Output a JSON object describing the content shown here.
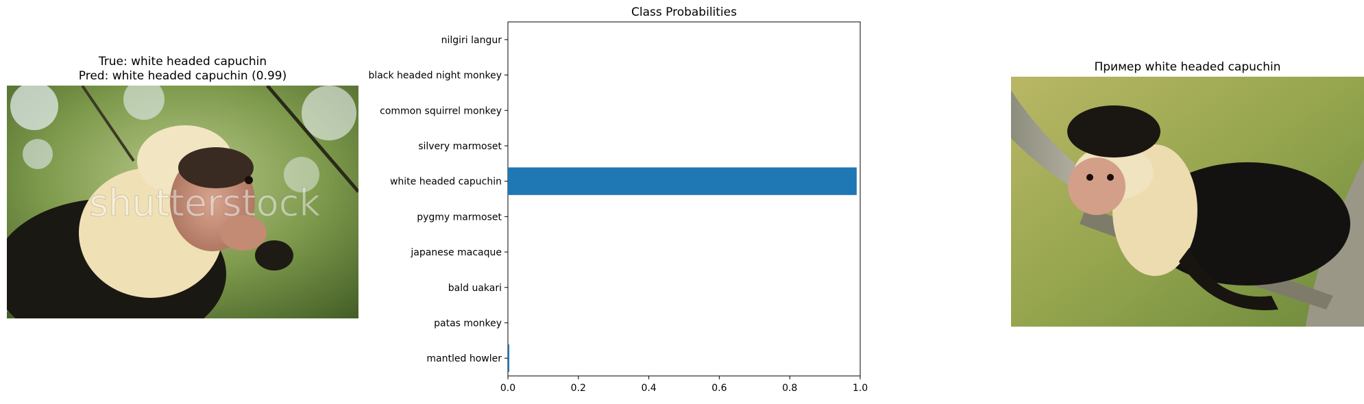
{
  "left_panel": {
    "title_true": "True: white headed capuchin",
    "title_pred": "Pred: white headed capuchin (0.99)",
    "watermark": "shutterstock"
  },
  "right_panel": {
    "title": "Пример white headed capuchin"
  },
  "chart_data": {
    "type": "bar",
    "orientation": "horizontal",
    "title": "Class Probabilities",
    "xlabel": "",
    "ylabel": "",
    "xlim": [
      0,
      1.0
    ],
    "xticks": [
      "0.0",
      "0.2",
      "0.4",
      "0.6",
      "0.8",
      "1.0"
    ],
    "categories": [
      "nilgiri langur",
      "black headed night monkey",
      "common squirrel monkey",
      "silvery marmoset",
      "white headed capuchin",
      "pygmy marmoset",
      "japanese macaque",
      "bald uakari",
      "patas monkey",
      "mantled howler"
    ],
    "values": [
      0.0,
      0.0,
      0.0,
      0.0,
      0.99,
      0.0,
      0.0,
      0.0,
      0.0,
      0.004
    ],
    "bar_color": "#1f77b4",
    "grid": false
  }
}
